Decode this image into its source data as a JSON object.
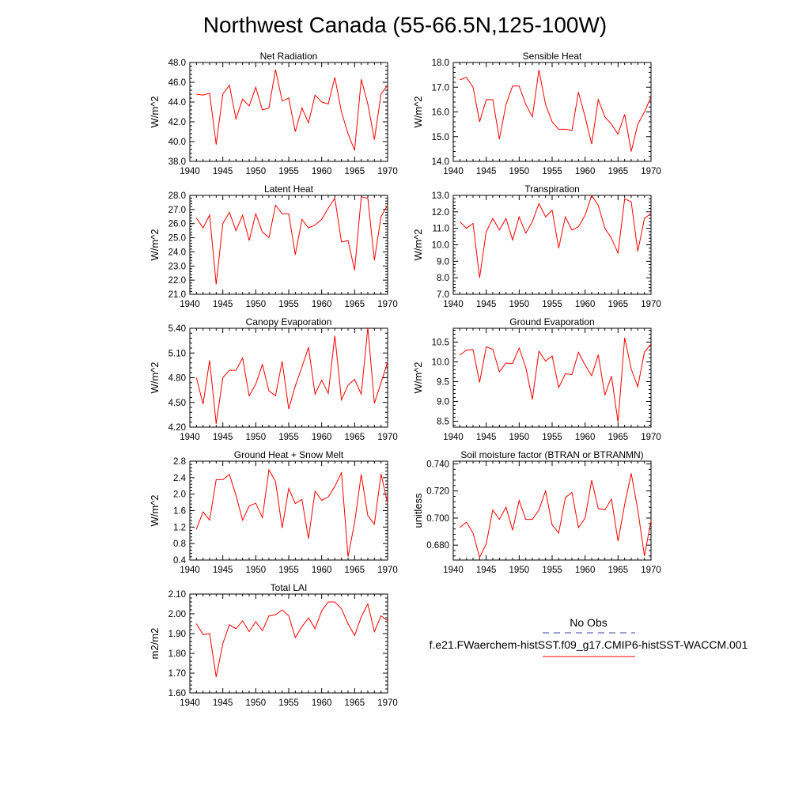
{
  "title": "Northwest Canada (55-66.5N,125-100W)",
  "colors": {
    "model": "#ff0000",
    "obs": "#4040a0",
    "axis": "#000000"
  },
  "legend": {
    "obs_label": "No Obs",
    "model_label": "f.e21.FWaerchem-histSST.f09_g17.CMIP6-histSST-WACCM.001"
  },
  "chart_data": [
    {
      "type": "line",
      "title": "Net Radiation",
      "ylabel": "W/m^2",
      "xlim": [
        1940,
        1970
      ],
      "ylim": [
        38,
        48
      ],
      "xticks": [
        "1940",
        "1945",
        "1950",
        "1955",
        "1960",
        "1965",
        "1970"
      ],
      "yticks": [
        "38.0",
        "40.0",
        "42.0",
        "44.0",
        "46.0",
        "48.0"
      ],
      "series": [
        {
          "x": [
            1941,
            1942,
            1943,
            1944,
            1945,
            1946,
            1947,
            1948,
            1949,
            1950,
            1951,
            1952,
            1953,
            1954,
            1955,
            1956,
            1957,
            1958,
            1959,
            1960,
            1961,
            1962,
            1963,
            1964,
            1965,
            1966,
            1967,
            1968,
            1969,
            1970
          ],
          "values": [
            44.8,
            44.7,
            44.9,
            39.7,
            44.8,
            45.7,
            42.3,
            44.3,
            43.6,
            45.5,
            43.2,
            43.4,
            47.3,
            44.1,
            44.4,
            41.0,
            43.4,
            41.9,
            44.7,
            44.0,
            43.8,
            46.5,
            43.0,
            40.8,
            39.1,
            46.3,
            43.8,
            40.2,
            44.8,
            45.7
          ]
        }
      ]
    },
    {
      "type": "line",
      "title": "Sensible Heat",
      "ylabel": "W/m^2",
      "xlim": [
        1940,
        1970
      ],
      "ylim": [
        14,
        18
      ],
      "xticks": [
        "1940",
        "1945",
        "1950",
        "1955",
        "1960",
        "1965",
        "1970"
      ],
      "yticks": [
        "14.0",
        "15.0",
        "16.0",
        "17.0",
        "18.0"
      ],
      "series": [
        {
          "x": [
            1941,
            1942,
            1943,
            1944,
            1945,
            1946,
            1947,
            1948,
            1949,
            1950,
            1951,
            1952,
            1953,
            1954,
            1955,
            1956,
            1957,
            1958,
            1959,
            1960,
            1961,
            1962,
            1963,
            1964,
            1965,
            1966,
            1967,
            1968,
            1969,
            1970
          ],
          "values": [
            17.3,
            17.4,
            17.0,
            15.6,
            16.5,
            16.5,
            14.9,
            16.3,
            17.05,
            17.05,
            16.3,
            15.8,
            17.7,
            16.3,
            15.6,
            15.3,
            15.3,
            15.25,
            16.8,
            15.8,
            14.7,
            16.5,
            15.8,
            15.5,
            15.1,
            15.9,
            14.4,
            15.5,
            16.0,
            16.6
          ]
        }
      ]
    },
    {
      "type": "line",
      "title": "Latent Heat",
      "ylabel": "W/m^2",
      "xlim": [
        1940,
        1970
      ],
      "ylim": [
        21,
        28
      ],
      "xticks": [
        "1940",
        "1945",
        "1950",
        "1955",
        "1960",
        "1965",
        "1970"
      ],
      "yticks": [
        "21.0",
        "22.0",
        "23.0",
        "24.0",
        "25.0",
        "26.0",
        "27.0",
        "28.0"
      ],
      "series": [
        {
          "x": [
            1941,
            1942,
            1943,
            1944,
            1945,
            1946,
            1947,
            1948,
            1949,
            1950,
            1951,
            1952,
            1953,
            1954,
            1955,
            1956,
            1957,
            1958,
            1959,
            1960,
            1961,
            1962,
            1963,
            1964,
            1965,
            1966,
            1967,
            1968,
            1969,
            1970
          ],
          "values": [
            26.4,
            25.7,
            26.6,
            21.7,
            26.0,
            26.8,
            25.5,
            26.6,
            24.8,
            26.7,
            25.4,
            25.0,
            27.3,
            26.7,
            26.7,
            23.8,
            26.3,
            25.7,
            25.9,
            26.3,
            27.1,
            27.8,
            24.7,
            24.8,
            22.7,
            27.9,
            27.8,
            23.4,
            26.5,
            27.3
          ]
        }
      ]
    },
    {
      "type": "line",
      "title": "Transpiration",
      "ylabel": "W/m^2",
      "xlim": [
        1940,
        1970
      ],
      "ylim": [
        7,
        13
      ],
      "xticks": [
        "1940",
        "1945",
        "1950",
        "1955",
        "1960",
        "1965",
        "1970"
      ],
      "yticks": [
        "7.0",
        "8.0",
        "9.0",
        "10.0",
        "11.0",
        "12.0",
        "13.0"
      ],
      "series": [
        {
          "x": [
            1941,
            1942,
            1943,
            1944,
            1945,
            1946,
            1947,
            1948,
            1949,
            1950,
            1951,
            1952,
            1953,
            1954,
            1955,
            1956,
            1957,
            1958,
            1959,
            1960,
            1961,
            1962,
            1963,
            1964,
            1965,
            1966,
            1967,
            1968,
            1969,
            1970
          ],
          "values": [
            11.4,
            11.0,
            11.3,
            8.0,
            10.8,
            11.6,
            10.9,
            11.6,
            10.3,
            11.7,
            10.7,
            11.4,
            12.5,
            11.7,
            12.1,
            9.8,
            11.7,
            10.9,
            11.1,
            11.8,
            13.0,
            12.4,
            11.0,
            10.4,
            9.5,
            12.8,
            12.6,
            9.6,
            11.6,
            11.9
          ]
        }
      ]
    },
    {
      "type": "line",
      "title": "Canopy Evaporation",
      "ylabel": "W/m^2",
      "xlim": [
        1940,
        1970
      ],
      "ylim": [
        4.2,
        5.4
      ],
      "xticks": [
        "1940",
        "1945",
        "1950",
        "1955",
        "1960",
        "1965",
        "1970"
      ],
      "yticks": [
        "4.20",
        "4.50",
        "4.80",
        "5.10",
        "5.40"
      ],
      "series": [
        {
          "x": [
            1941,
            1942,
            1943,
            1944,
            1945,
            1946,
            1947,
            1948,
            1949,
            1950,
            1951,
            1952,
            1953,
            1954,
            1955,
            1956,
            1957,
            1958,
            1959,
            1960,
            1961,
            1962,
            1963,
            1964,
            1965,
            1966,
            1967,
            1968,
            1969,
            1970
          ],
          "values": [
            4.8,
            4.48,
            5.01,
            4.24,
            4.8,
            4.89,
            4.89,
            5.04,
            4.58,
            4.72,
            4.96,
            4.64,
            4.58,
            5.0,
            4.42,
            4.7,
            4.93,
            5.17,
            4.6,
            4.77,
            4.61,
            5.31,
            4.53,
            4.71,
            4.78,
            4.6,
            5.41,
            4.49,
            4.74,
            4.99
          ]
        }
      ]
    },
    {
      "type": "line",
      "title": "Ground Evaporation",
      "ylabel": "W/m^2",
      "xlim": [
        1940,
        1970
      ],
      "ylim": [
        8.35,
        10.85
      ],
      "xticks": [
        "1940",
        "1945",
        "1950",
        "1955",
        "1960",
        "1965",
        "1970"
      ],
      "yticks": [
        "8.5",
        "9.0",
        "9.5",
        "10.0",
        "10.5"
      ],
      "series": [
        {
          "x": [
            1941,
            1942,
            1943,
            1944,
            1945,
            1946,
            1947,
            1948,
            1949,
            1950,
            1951,
            1952,
            1953,
            1954,
            1955,
            1956,
            1957,
            1958,
            1959,
            1960,
            1961,
            1962,
            1963,
            1964,
            1965,
            1966,
            1967,
            1968,
            1969,
            1970
          ],
          "values": [
            10.17,
            10.3,
            10.31,
            9.48,
            10.38,
            10.32,
            9.75,
            9.97,
            9.96,
            10.35,
            9.86,
            9.05,
            10.27,
            10.02,
            10.15,
            9.35,
            9.7,
            9.68,
            10.24,
            9.92,
            9.65,
            10.18,
            9.16,
            9.64,
            8.48,
            10.61,
            9.82,
            9.37,
            10.25,
            10.45
          ]
        }
      ]
    },
    {
      "type": "line",
      "title": "Ground Heat + Snow Melt",
      "ylabel": "W/m^2",
      "xlim": [
        1940,
        1970
      ],
      "ylim": [
        0.4,
        2.8
      ],
      "xticks": [
        "1940",
        "1945",
        "1950",
        "1955",
        "1960",
        "1965",
        "1970"
      ],
      "yticks": [
        "0.4",
        "0.8",
        "1.2",
        "1.6",
        "2.0",
        "2.4",
        "2.8"
      ],
      "series": [
        {
          "x": [
            1941,
            1942,
            1943,
            1944,
            1945,
            1946,
            1947,
            1948,
            1949,
            1950,
            1951,
            1952,
            1953,
            1954,
            1955,
            1956,
            1957,
            1958,
            1959,
            1960,
            1961,
            1962,
            1963,
            1964,
            1965,
            1966,
            1967,
            1968,
            1969,
            1970
          ],
          "values": [
            1.15,
            1.57,
            1.37,
            2.35,
            2.35,
            2.48,
            1.97,
            1.37,
            1.71,
            1.78,
            1.43,
            2.59,
            2.31,
            1.18,
            2.14,
            1.77,
            1.87,
            0.92,
            2.07,
            1.85,
            1.93,
            2.19,
            2.52,
            0.48,
            1.31,
            2.48,
            1.48,
            1.27,
            2.49,
            1.77
          ]
        }
      ]
    },
    {
      "type": "line",
      "title": "Soil moisture factor (BTRAN or BTRANMN)",
      "ylabel": "unitless",
      "xlim": [
        1940,
        1970
      ],
      "ylim": [
        0.669,
        0.742
      ],
      "xticks": [
        "1940",
        "1945",
        "1950",
        "1955",
        "1960",
        "1965",
        "1970"
      ],
      "yticks": [
        "0.680",
        "0.700",
        "0.720",
        "0.740"
      ],
      "series": [
        {
          "x": [
            1941,
            1942,
            1943,
            1944,
            1945,
            1946,
            1947,
            1948,
            1949,
            1950,
            1951,
            1952,
            1953,
            1954,
            1955,
            1956,
            1957,
            1958,
            1959,
            1960,
            1961,
            1962,
            1963,
            1964,
            1965,
            1966,
            1967,
            1968,
            1969,
            1970
          ],
          "values": [
            0.693,
            0.697,
            0.689,
            0.671,
            0.681,
            0.706,
            0.699,
            0.708,
            0.691,
            0.713,
            0.699,
            0.699,
            0.706,
            0.72,
            0.695,
            0.689,
            0.715,
            0.719,
            0.693,
            0.7,
            0.728,
            0.707,
            0.706,
            0.714,
            0.683,
            0.71,
            0.733,
            0.706,
            0.672,
            0.698
          ]
        }
      ]
    },
    {
      "type": "line",
      "title": "Total LAI",
      "ylabel": "m2/m2",
      "xlim": [
        1940,
        1970
      ],
      "ylim": [
        1.6,
        2.1
      ],
      "xticks": [
        "1940",
        "1945",
        "1950",
        "1955",
        "1960",
        "1965",
        "1970"
      ],
      "yticks": [
        "1.60",
        "1.70",
        "1.80",
        "1.90",
        "2.00",
        "2.10"
      ],
      "series": [
        {
          "x": [
            1941,
            1942,
            1943,
            1944,
            1945,
            1946,
            1947,
            1948,
            1949,
            1950,
            1951,
            1952,
            1953,
            1954,
            1955,
            1956,
            1957,
            1958,
            1959,
            1960,
            1961,
            1962,
            1963,
            1964,
            1965,
            1966,
            1967,
            1968,
            1969,
            1970
          ],
          "values": [
            1.95,
            1.895,
            1.9,
            1.68,
            1.85,
            1.945,
            1.925,
            1.965,
            1.91,
            1.96,
            1.915,
            1.99,
            1.995,
            2.02,
            1.99,
            1.88,
            1.935,
            1.98,
            1.925,
            2.015,
            2.06,
            2.06,
            2.025,
            1.95,
            1.89,
            1.985,
            2.05,
            1.91,
            1.99,
            1.965
          ]
        }
      ]
    }
  ]
}
